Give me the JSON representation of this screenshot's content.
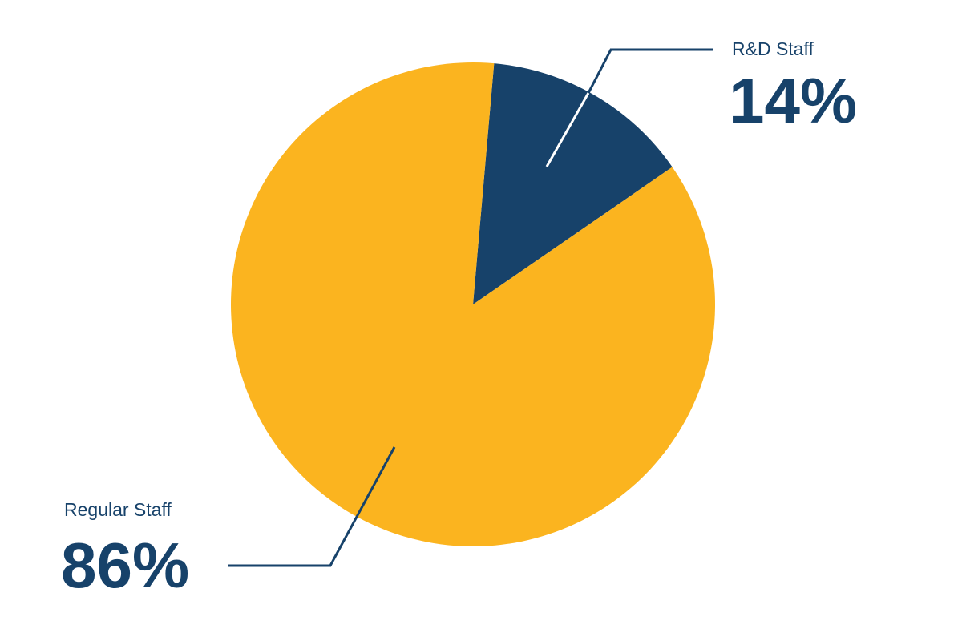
{
  "chart_data": {
    "type": "pie",
    "categories": [
      "R&D Staff",
      "Regular Staff"
    ],
    "values": [
      14,
      86
    ],
    "value_labels": [
      "14%",
      "86%"
    ],
    "colors": [
      "#17426a",
      "#fbb41f"
    ]
  }
}
